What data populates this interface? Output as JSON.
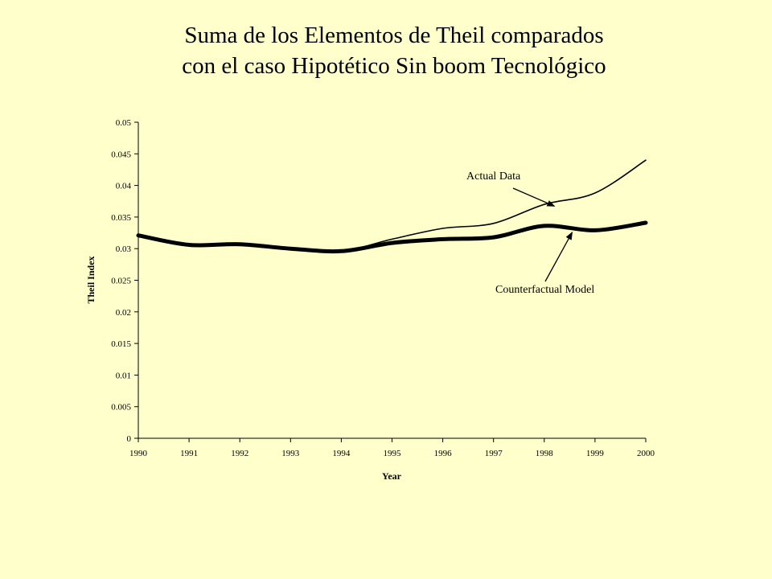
{
  "slide": {
    "title_line1": "Suma de los Elementos de Theil comparados",
    "title_line2": "con el caso Hipotético Sin boom Tecnológico"
  },
  "chart_data": {
    "type": "line",
    "xlabel": "Year",
    "ylabel": "Theil Index",
    "xlim": [
      1990,
      2000
    ],
    "ylim": [
      0,
      0.05
    ],
    "x_ticks": [
      "1990",
      "1991",
      "1992",
      "1993",
      "1994",
      "1995",
      "1996",
      "1997",
      "1998",
      "1999",
      "2000"
    ],
    "y_ticks": [
      "0",
      "0.005",
      "0.01",
      "0.015",
      "0.02",
      "0.025",
      "0.03",
      "0.035",
      "0.04",
      "0.045",
      "0.05"
    ],
    "grid": false,
    "legend": "none",
    "series": [
      {
        "name": "Actual Data",
        "color": "#000000",
        "x": [
          1990,
          1991,
          1992,
          1993,
          1994,
          1995,
          1996,
          1997,
          1998,
          1999,
          2000
        ],
        "y": [
          0.0321,
          0.0306,
          0.0307,
          0.03,
          0.0296,
          0.0315,
          0.0332,
          0.034,
          0.037,
          0.0388,
          0.044
        ]
      },
      {
        "name": "Counterfactual Model",
        "color": "#000000",
        "x": [
          1990,
          1991,
          1992,
          1993,
          1994,
          1995,
          1996,
          1997,
          1998,
          1999,
          2000
        ],
        "y": [
          0.0321,
          0.0306,
          0.0307,
          0.03,
          0.0296,
          0.0309,
          0.0315,
          0.0318,
          0.0336,
          0.0329,
          0.0341
        ]
      }
    ],
    "annotations": [
      {
        "text": "Actual Data",
        "series": "Actual Data",
        "points_to_x": 1998.2
      },
      {
        "text": "Counterfactual Model",
        "series": "Counterfactual Model",
        "points_to_x": 1998.55
      }
    ]
  }
}
